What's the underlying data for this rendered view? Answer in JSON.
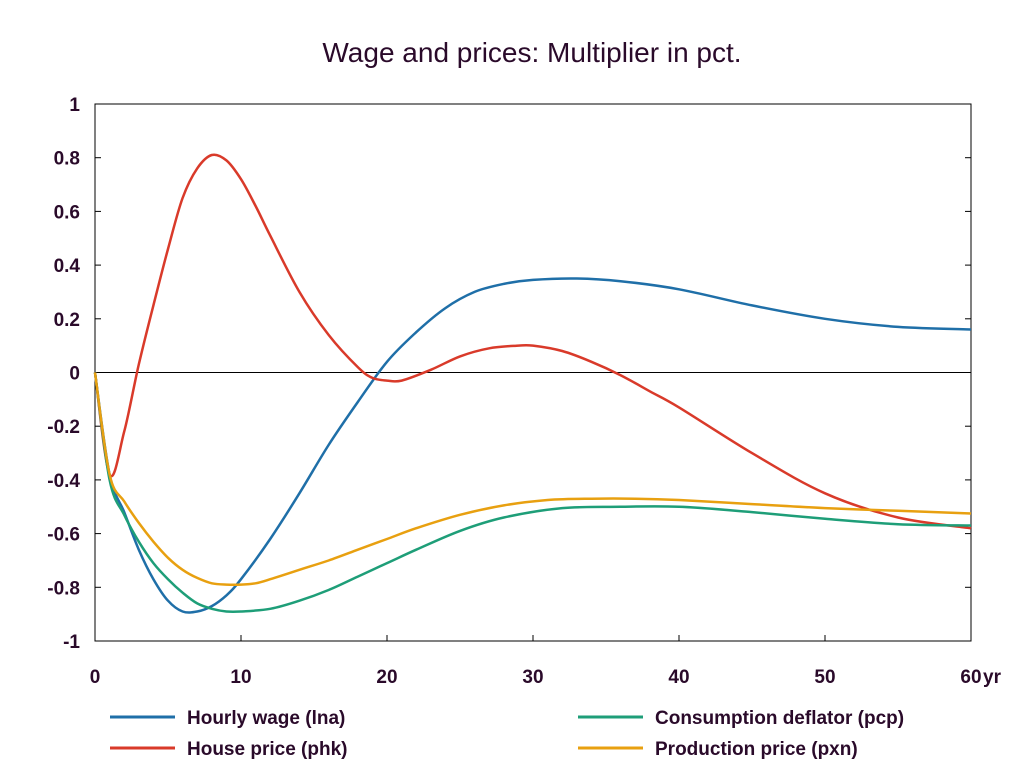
{
  "chart_data": {
    "type": "line",
    "title": "Wage and prices: Multiplier in pct.",
    "xlabel": "",
    "ylabel": "",
    "x_unit_label": "yr",
    "xlim": [
      0,
      60
    ],
    "ylim": [
      -1,
      1
    ],
    "x_ticks": [
      0,
      10,
      20,
      30,
      40,
      50,
      60
    ],
    "y_ticks": [
      1,
      0.8,
      0.6,
      0.4,
      0.2,
      0,
      -0.2,
      -0.4,
      -0.6,
      -0.8,
      -1
    ],
    "grid": false,
    "zero_line": true,
    "legend_placement": "bottom",
    "series": [
      {
        "name": "Hourly wage (lna)",
        "color": "#1f6fa8",
        "x": [
          0,
          1,
          2,
          3,
          4,
          5,
          6,
          7,
          8,
          9,
          10,
          12,
          14,
          16,
          18,
          20,
          22,
          24,
          26,
          28,
          30,
          33,
          36,
          40,
          45,
          50,
          55,
          60
        ],
        "values": [
          0,
          -0.38,
          -0.52,
          -0.66,
          -0.77,
          -0.85,
          -0.89,
          -0.89,
          -0.87,
          -0.83,
          -0.77,
          -0.62,
          -0.45,
          -0.27,
          -0.11,
          0.04,
          0.15,
          0.24,
          0.3,
          0.33,
          0.345,
          0.35,
          0.34,
          0.31,
          0.25,
          0.2,
          0.17,
          0.16
        ]
      },
      {
        "name": "House price (phk)",
        "color": "#d93a2a",
        "x": [
          0,
          1,
          2,
          3,
          4,
          5,
          6,
          7,
          8,
          9,
          10,
          11,
          12,
          14,
          16,
          18,
          19,
          20,
          21,
          23,
          25,
          27,
          29,
          30,
          32,
          34,
          36,
          38,
          40,
          45,
          50,
          55,
          60
        ],
        "values": [
          0,
          -0.38,
          -0.22,
          0.03,
          0.25,
          0.46,
          0.65,
          0.76,
          0.81,
          0.79,
          0.72,
          0.62,
          0.51,
          0.3,
          0.14,
          0.02,
          -0.02,
          -0.03,
          -0.03,
          0.01,
          0.06,
          0.09,
          0.1,
          0.1,
          0.08,
          0.04,
          -0.01,
          -0.07,
          -0.13,
          -0.3,
          -0.45,
          -0.54,
          -0.58
        ]
      },
      {
        "name": "Consumption deflator (pcp)",
        "color": "#1e9e78",
        "x": [
          0,
          1,
          2,
          3,
          4,
          5,
          6,
          7,
          8,
          9,
          10,
          12,
          14,
          16,
          18,
          20,
          22,
          25,
          28,
          32,
          36,
          40,
          45,
          50,
          55,
          60
        ],
        "values": [
          0,
          -0.4,
          -0.53,
          -0.63,
          -0.71,
          -0.77,
          -0.82,
          -0.86,
          -0.88,
          -0.89,
          -0.89,
          -0.88,
          -0.85,
          -0.81,
          -0.76,
          -0.71,
          -0.66,
          -0.59,
          -0.54,
          -0.505,
          -0.5,
          -0.5,
          -0.52,
          -0.545,
          -0.565,
          -0.57
        ]
      },
      {
        "name": "Production price (pxn)",
        "color": "#e8a010",
        "x": [
          0,
          1,
          2,
          3,
          4,
          5,
          6,
          7,
          8,
          9,
          10,
          11,
          12,
          14,
          16,
          18,
          20,
          22,
          25,
          28,
          31,
          34,
          37,
          40,
          45,
          50,
          55,
          60
        ],
        "values": [
          0,
          -0.38,
          -0.48,
          -0.56,
          -0.63,
          -0.69,
          -0.735,
          -0.765,
          -0.785,
          -0.79,
          -0.79,
          -0.785,
          -0.77,
          -0.735,
          -0.7,
          -0.66,
          -0.62,
          -0.58,
          -0.53,
          -0.495,
          -0.475,
          -0.47,
          -0.47,
          -0.475,
          -0.49,
          -0.505,
          -0.515,
          -0.525
        ]
      }
    ]
  }
}
